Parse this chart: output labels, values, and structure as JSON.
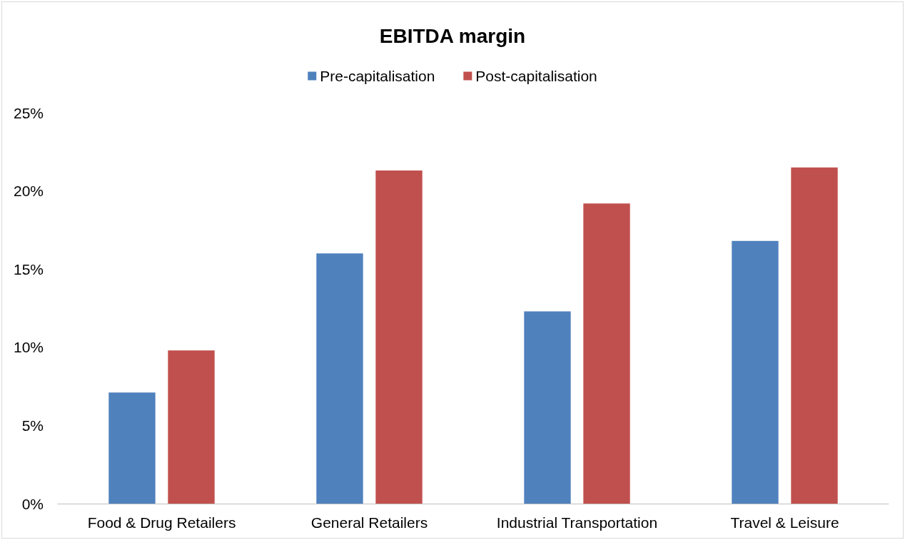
{
  "chart_data": {
    "type": "bar",
    "title": "EBITDA margin",
    "categories": [
      "Food & Drug Retailers",
      "General Retailers",
      "Industrial Transportation",
      "Travel & Leisure"
    ],
    "series": [
      {
        "name": "Pre-capitalisation",
        "color": "#4f81bd",
        "values": [
          7.1,
          16.0,
          12.3,
          16.8
        ]
      },
      {
        "name": "Post-capitalisation",
        "color": "#c0504d",
        "values": [
          9.8,
          21.3,
          19.2,
          21.5
        ]
      }
    ],
    "ylim": [
      0,
      25
    ],
    "yticks": [
      {
        "value": 0,
        "label": "0%"
      },
      {
        "value": 5,
        "label": "5%"
      },
      {
        "value": 10,
        "label": "10%"
      },
      {
        "value": 15,
        "label": "15%"
      },
      {
        "value": 20,
        "label": "20%"
      },
      {
        "value": 25,
        "label": "25%"
      }
    ],
    "grid": false,
    "legend": "top"
  }
}
